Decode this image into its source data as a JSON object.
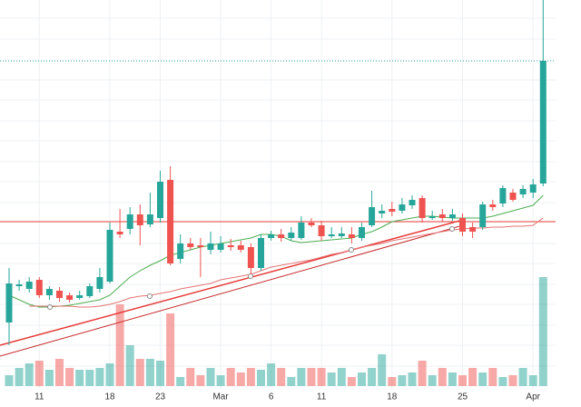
{
  "chart_data": {
    "type": "candlestick",
    "categories": [
      null,
      null,
      null,
      "11",
      null,
      null,
      null,
      null,
      null,
      null,
      "18",
      null,
      null,
      null,
      null,
      "23",
      null,
      null,
      null,
      null,
      null,
      "Mar",
      null,
      null,
      null,
      null,
      "6",
      null,
      null,
      null,
      null,
      "11",
      null,
      null,
      null,
      null,
      null,
      null,
      "18",
      null,
      null,
      null,
      null,
      null,
      null,
      "25",
      null,
      null,
      null,
      null,
      null,
      null,
      "Apr",
      null
    ],
    "open": [
      93,
      133,
      130,
      140,
      123,
      128,
      123,
      120,
      122,
      130,
      138,
      193,
      196,
      212,
      201,
      208,
      250,
      163,
      180,
      178,
      173,
      173,
      178,
      178,
      176,
      153,
      186,
      190,
      186,
      186,
      203,
      200,
      188,
      188,
      190,
      186,
      200,
      213,
      218,
      216,
      222,
      230,
      208,
      212,
      208,
      208,
      198,
      198,
      223,
      224,
      236,
      234,
      236,
      246
    ],
    "high": [
      153,
      140,
      143,
      143,
      133,
      132,
      126,
      128,
      136,
      153,
      203,
      218,
      220,
      223,
      236,
      260,
      265,
      190,
      186,
      186,
      193,
      188,
      185,
      183,
      180,
      190,
      194,
      196,
      198,
      210,
      208,
      205,
      198,
      198,
      198,
      203,
      238,
      223,
      226,
      230,
      233,
      233,
      216,
      218,
      218,
      213,
      203,
      226,
      228,
      244,
      240,
      244,
      251,
      448
    ],
    "low": [
      68,
      128,
      126,
      120,
      118,
      116,
      115,
      118,
      120,
      126,
      136,
      186,
      190,
      178,
      198,
      203,
      156,
      158,
      173,
      143,
      168,
      170,
      172,
      170,
      146,
      150,
      183,
      182,
      183,
      184,
      198,
      183,
      186,
      186,
      180,
      183,
      198,
      208,
      210,
      213,
      218,
      203,
      206,
      204,
      205,
      188,
      186,
      195,
      216,
      220,
      226,
      230,
      230,
      243
    ],
    "close": [
      136,
      135,
      138,
      123,
      130,
      120,
      118,
      123,
      133,
      143,
      195,
      190,
      212,
      200,
      212,
      248,
      158,
      180,
      176,
      176,
      180,
      180,
      176,
      173,
      153,
      186,
      190,
      186,
      192,
      203,
      200,
      188,
      190,
      191,
      186,
      198,
      220,
      216,
      215,
      223,
      228,
      208,
      210,
      208,
      212,
      193,
      193,
      223,
      220,
      241,
      228,
      240,
      245,
      381
    ],
    "volume": [
      12,
      20,
      25,
      28,
      18,
      30,
      20,
      18,
      18,
      20,
      25,
      90,
      45,
      30,
      30,
      28,
      80,
      10,
      20,
      12,
      20,
      12,
      20,
      15,
      20,
      18,
      25,
      20,
      10,
      20,
      20,
      20,
      15,
      20,
      10,
      15,
      20,
      35,
      10,
      12,
      15,
      28,
      12,
      20,
      15,
      12,
      20,
      15,
      20,
      10,
      12,
      20,
      12,
      120
    ],
    "up_color": "#26a69a",
    "down_color": "#ef5350",
    "ylim": [
      0,
      448
    ],
    "y2lim": [
      0,
      425
    ],
    "overlays": [
      {
        "color": "#4caf50",
        "values": [
          123,
          118,
          113,
          110,
          110,
          111,
          112,
          114,
          116,
          118,
          123,
          133,
          143,
          150,
          156,
          161,
          167,
          170,
          173,
          176,
          178,
          180,
          182,
          184,
          186,
          190,
          190,
          188,
          183,
          181,
          182,
          183,
          184,
          185,
          186,
          190,
          193,
          198,
          204,
          206,
          208,
          210,
          210,
          209,
          208,
          208,
          208,
          208,
          210,
          213,
          216,
          219,
          222,
          233
        ]
      },
      {
        "color": "#e57373",
        "values": [
          null,
          null,
          111,
          111,
          111,
          111,
          111,
          110,
          110,
          111,
          113,
          116,
          120,
          122,
          123,
          125,
          127,
          130,
          132,
          134,
          136,
          140,
          142,
          144,
          146,
          150,
          154,
          156,
          158,
          160,
          162,
          165,
          168,
          170,
          173,
          176,
          178,
          180,
          183,
          185,
          187,
          189,
          191,
          193,
          195,
          196,
          197,
          197,
          198,
          198,
          199,
          199,
          200,
          208
        ]
      }
    ]
  }
}
